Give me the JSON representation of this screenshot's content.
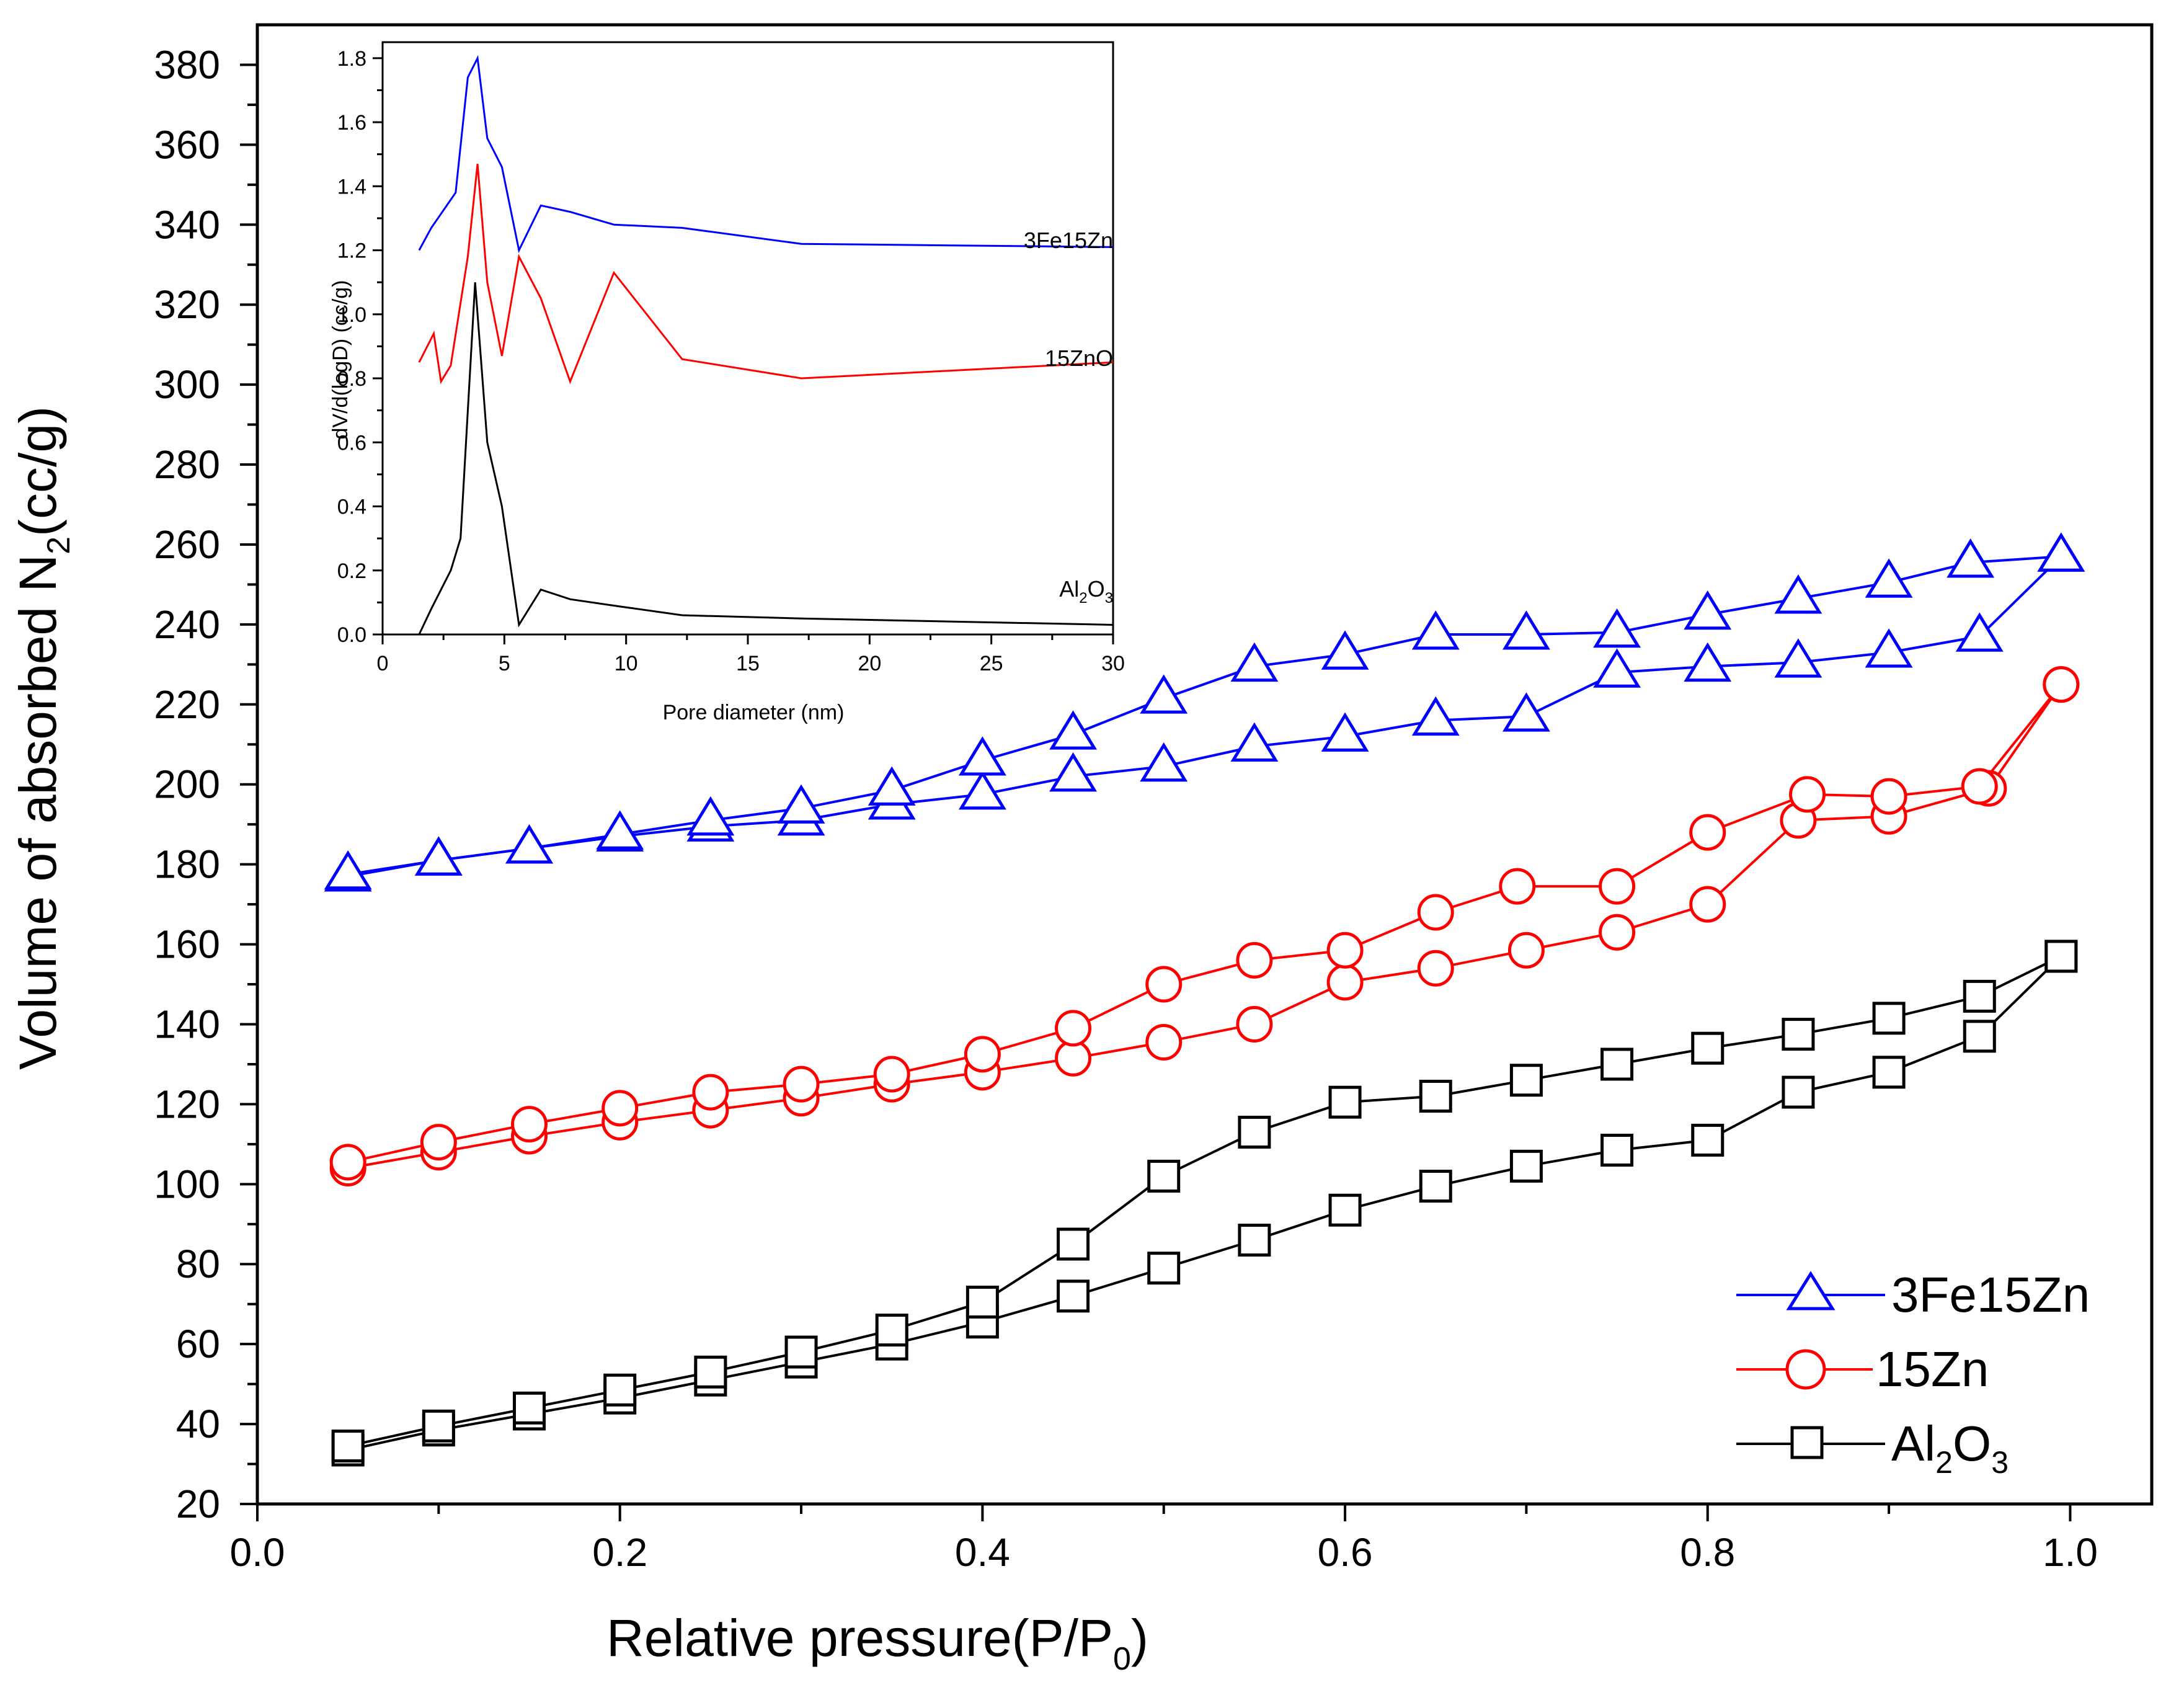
{
  "chart_data": [
    {
      "type": "line",
      "xlabel": "Relative pressure(P/P0)",
      "ylabel": "Volume of absorbed N2(cc/g)",
      "xlim": [
        0.0,
        1.045
      ],
      "ylim": [
        20,
        390
      ],
      "xticks": [
        "0.0",
        "0.2",
        "0.4",
        "0.6",
        "0.8",
        "1.0"
      ],
      "yticks": [
        "20",
        "40",
        "60",
        "80",
        "100",
        "120",
        "140",
        "160",
        "180",
        "200",
        "220",
        "240",
        "260",
        "280",
        "300",
        "320",
        "340",
        "360",
        "380"
      ],
      "legend_position": "bottom-right",
      "series": [
        {
          "name": "3Fe15Zn",
          "color": "#0000ff",
          "marker": "triangle",
          "branches": [
            {
              "x": [
                0.05,
                0.1,
                0.15,
                0.2,
                0.25,
                0.3,
                0.35,
                0.4,
                0.45,
                0.5,
                0.55,
                0.6,
                0.65,
                0.7,
                0.75,
                0.8,
                0.85,
                0.9,
                0.95,
                0.995
              ],
              "y": [
                177,
                181,
                184,
                187,
                189.5,
                191,
                195,
                197.5,
                202,
                204.5,
                209.5,
                212,
                216,
                217,
                228,
                229.5,
                230.5,
                233,
                237,
                257
              ]
            },
            {
              "x": [
                0.05,
                0.1,
                0.15,
                0.2,
                0.25,
                0.3,
                0.35,
                0.4,
                0.45,
                0.5,
                0.55,
                0.6,
                0.65,
                0.7,
                0.75,
                0.8,
                0.85,
                0.9,
                0.945,
                0.995
              ],
              "y": [
                177.5,
                181,
                184,
                187.5,
                191,
                194,
                198.5,
                206,
                212.5,
                221.5,
                229.5,
                232.5,
                237.5,
                237.5,
                238,
                242.5,
                246.5,
                250.5,
                255.5,
                257
              ]
            }
          ]
        },
        {
          "name": "15Zn",
          "color": "#ff0000",
          "marker": "circle",
          "branches": [
            {
              "x": [
                0.05,
                0.1,
                0.15,
                0.2,
                0.25,
                0.3,
                0.35,
                0.4,
                0.45,
                0.5,
                0.55,
                0.6,
                0.65,
                0.7,
                0.75,
                0.8,
                0.85,
                0.9,
                0.955,
                0.995
              ],
              "y": [
                104,
                108,
                112,
                115.5,
                118.5,
                121.5,
                125,
                128,
                131.5,
                135.5,
                140,
                150.5,
                154,
                158.5,
                163,
                170,
                191,
                192,
                199,
                225
              ]
            },
            {
              "x": [
                0.05,
                0.1,
                0.15,
                0.2,
                0.25,
                0.3,
                0.35,
                0.4,
                0.45,
                0.5,
                0.55,
                0.6,
                0.65,
                0.695,
                0.75,
                0.8,
                0.855,
                0.9,
                0.95,
                0.995
              ],
              "y": [
                105.5,
                110.5,
                115,
                119,
                123,
                125,
                127.5,
                132.5,
                139,
                150,
                156,
                158.5,
                168,
                174.5,
                174.5,
                188,
                197.5,
                197,
                199.5,
                225
              ]
            }
          ]
        },
        {
          "name": "Al2O3",
          "color": "#000000",
          "marker": "square",
          "branches": [
            {
              "x": [
                0.05,
                0.1,
                0.15,
                0.2,
                0.25,
                0.3,
                0.35,
                0.4,
                0.45,
                0.5,
                0.55,
                0.6,
                0.65,
                0.7,
                0.75,
                0.8,
                0.85,
                0.9,
                0.95,
                0.995
              ],
              "y": [
                33.5,
                38.5,
                42.5,
                46.5,
                51,
                55.5,
                60,
                65.5,
                72,
                79,
                86,
                93.5,
                99.5,
                104.5,
                108.5,
                111,
                123,
                128,
                137,
                157
              ]
            },
            {
              "x": [
                0.05,
                0.1,
                0.15,
                0.2,
                0.25,
                0.3,
                0.35,
                0.4,
                0.45,
                0.5,
                0.55,
                0.6,
                0.65,
                0.7,
                0.75,
                0.8,
                0.85,
                0.9,
                0.95,
                0.995
              ],
              "y": [
                34.5,
                39.5,
                44,
                48.5,
                53,
                58,
                63.5,
                70.5,
                85,
                102,
                113,
                120.5,
                122,
                126,
                130,
                134,
                137.5,
                141.5,
                147,
                157
              ]
            }
          ]
        }
      ]
    },
    {
      "type": "line",
      "position": "inset-top-left",
      "xlabel": "Pore diameter (nm)",
      "ylabel": "dV/d(logD) (cc/g)",
      "xlim": [
        0,
        30
      ],
      "ylim": [
        0,
        1.85
      ],
      "xticks": [
        "0",
        "5",
        "10",
        "15",
        "20",
        "25",
        "30"
      ],
      "yticks": [
        "0.0",
        "0.2",
        "0.4",
        "0.6",
        "0.8",
        "1.0",
        "1.2",
        "1.4",
        "1.6",
        "1.8"
      ],
      "series": [
        {
          "name": "3Fe15Zn",
          "color": "#0000ff",
          "x": [
            1.5,
            2.0,
            3.0,
            3.5,
            3.9,
            4.3,
            4.9,
            5.6,
            6.5,
            7.7,
            9.5,
            12.3,
            17.2,
            30
          ],
          "y": [
            1.2,
            1.27,
            1.38,
            1.74,
            1.8,
            1.55,
            1.46,
            1.2,
            1.34,
            1.32,
            1.28,
            1.27,
            1.22,
            1.21
          ]
        },
        {
          "name": "15ZnO",
          "color": "#ff0000",
          "x": [
            1.5,
            2.1,
            2.4,
            2.8,
            3.5,
            3.9,
            4.3,
            4.9,
            5.6,
            6.5,
            7.7,
            9.5,
            12.3,
            17.2,
            30
          ],
          "y": [
            0.85,
            0.94,
            0.79,
            0.84,
            1.18,
            1.47,
            1.1,
            0.87,
            1.18,
            1.05,
            0.79,
            1.13,
            0.86,
            0.8,
            0.85
          ]
        },
        {
          "name": "Al2O3",
          "color": "#000000",
          "x": [
            1.5,
            2.0,
            2.8,
            3.2,
            3.8,
            4.3,
            4.9,
            5.6,
            6.5,
            7.7,
            9.5,
            12.3,
            17.2,
            30
          ],
          "y": [
            0.0,
            0.08,
            0.2,
            0.3,
            1.1,
            0.6,
            0.4,
            0.03,
            0.14,
            0.11,
            0.09,
            0.06,
            0.05,
            0.03
          ]
        }
      ],
      "labels": [
        "3Fe15Zn",
        "15ZnO",
        "Al2O3"
      ]
    }
  ],
  "text": {
    "main_ylabel_pre": "Volume of absorbed N",
    "main_ylabel_sub": "2",
    "main_ylabel_post": "(cc/g)",
    "main_xlabel_pre": "Relative pressure(P/P",
    "main_xlabel_sub": "0",
    "main_xlabel_post": ")",
    "legend_3fe": "3Fe15Zn",
    "legend_15zn": "15Zn",
    "legend_al_a": "Al",
    "legend_al_2": "2",
    "legend_al_o": "O",
    "legend_al_3": "3",
    "inset_3fe": "3Fe15Zn",
    "inset_15zno": "15ZnO",
    "inset_al_a": "Al",
    "inset_al_2": "2",
    "inset_al_o": "O",
    "inset_al_3": "3"
  }
}
